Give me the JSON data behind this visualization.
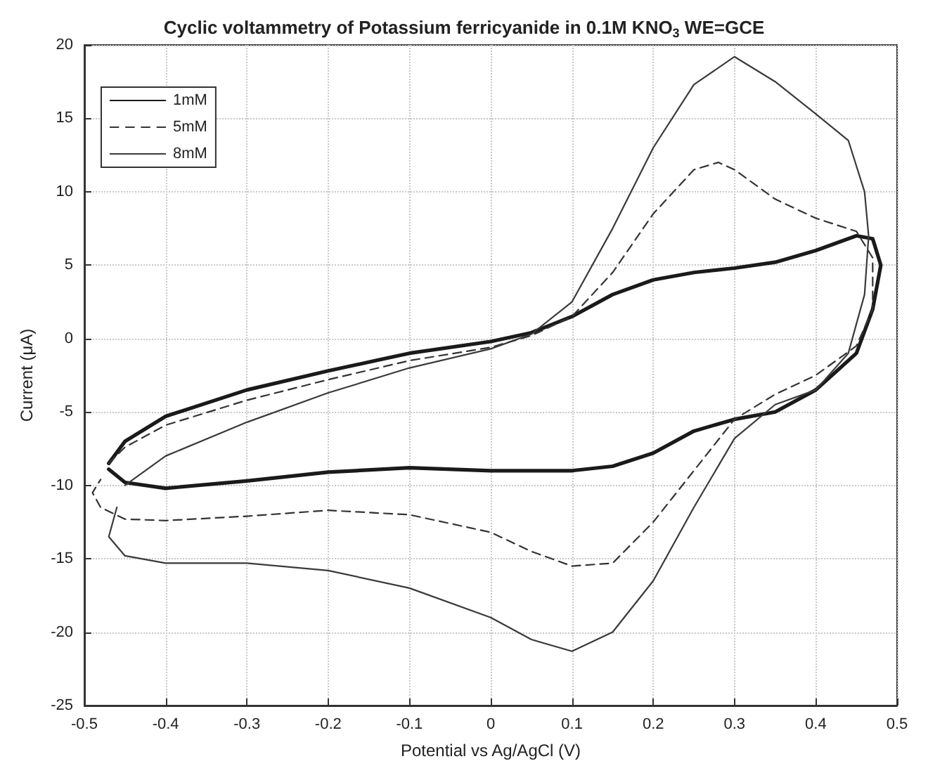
{
  "chart_data": {
    "type": "line",
    "title": "Cyclic voltammetry of Potassium ferricyanide in 0.1M KNO$_{3}$ WE=GCE",
    "xlabel": "Potential vs Ag/AgCl (V)",
    "ylabel": "Current (μA)",
    "xlim": [
      -0.5,
      0.5
    ],
    "xticks": [
      -0.5,
      -0.4,
      -0.3,
      -0.2,
      -0.1,
      0,
      0.1,
      0.2,
      0.3,
      0.4,
      0.5
    ],
    "ylim": [
      -25,
      20
    ],
    "yticks": [
      -25,
      -20,
      -15,
      -10,
      -5,
      0,
      5,
      10,
      15,
      20
    ],
    "grid": true,
    "legend": "top left",
    "marker": "none",
    "series": [
      {
        "name": "1mM",
        "color": "#1a1a1a",
        "line_style": "solid",
        "x": [
          -0.47,
          -0.45,
          -0.4,
          -0.3,
          -0.2,
          -0.1,
          0,
          0.05,
          0.1,
          0.15,
          0.2,
          0.25,
          0.3,
          0.35,
          0.4,
          0.45,
          0.47,
          0.48,
          0.47,
          0.45,
          0.4,
          0.35,
          0.3,
          0.25,
          0.2,
          0.15,
          0.1,
          0,
          -0.1,
          -0.2,
          -0.3,
          -0.4,
          -0.45,
          -0.47
        ],
        "values": [
          -8.5,
          -7,
          -5.3,
          -3.5,
          -2.2,
          -1,
          -0.2,
          0.4,
          1.5,
          3,
          4,
          4.5,
          4.8,
          5.2,
          6,
          7,
          6.8,
          5,
          2,
          -1,
          -3.5,
          -5,
          -5.5,
          -6.3,
          -7.8,
          -8.7,
          -9,
          -9,
          -8.8,
          -9.1,
          -9.7,
          -10.2,
          -9.8,
          -8.9
        ]
      },
      {
        "name": "5mM",
        "color": "#333333",
        "line_style": "dashed",
        "x": [
          -0.47,
          -0.45,
          -0.4,
          -0.3,
          -0.2,
          -0.1,
          0,
          0.05,
          0.1,
          0.15,
          0.2,
          0.25,
          0.28,
          0.3,
          0.35,
          0.4,
          0.45,
          0.47,
          0.47,
          0.45,
          0.4,
          0.35,
          0.3,
          0.25,
          0.2,
          0.15,
          0.1,
          0.05,
          0,
          -0.1,
          -0.2,
          -0.3,
          -0.4,
          -0.45,
          -0.48,
          -0.49,
          -0.48
        ],
        "values": [
          -8.5,
          -7.4,
          -5.9,
          -4.2,
          -2.8,
          -1.5,
          -0.6,
          0.2,
          1.5,
          4.5,
          8.5,
          11.5,
          12,
          11.5,
          9.5,
          8.2,
          7.3,
          5.5,
          2,
          -0.5,
          -2.5,
          -3.8,
          -5.5,
          -9,
          -12.5,
          -15.3,
          -15.5,
          -14.5,
          -13.2,
          -12,
          -11.7,
          -12.1,
          -12.4,
          -12.3,
          -11.5,
          -10.5,
          -9.6
        ]
      },
      {
        "name": "8mM",
        "color": "#3a3a3a",
        "line_style": "solid",
        "x": [
          -0.45,
          -0.4,
          -0.3,
          -0.2,
          -0.1,
          0,
          0.05,
          0.1,
          0.15,
          0.2,
          0.25,
          0.3,
          0.35,
          0.4,
          0.44,
          0.46,
          0.465,
          0.46,
          0.44,
          0.4,
          0.35,
          0.3,
          0.25,
          0.2,
          0.15,
          0.1,
          0.05,
          0,
          -0.1,
          -0.2,
          -0.3,
          -0.4,
          -0.45,
          -0.47,
          -0.46
        ],
        "values": [
          -10,
          -8,
          -5.7,
          -3.7,
          -2,
          -0.7,
          0.3,
          2.5,
          7.5,
          13,
          17.3,
          19.2,
          17.5,
          15.3,
          13.5,
          10,
          7,
          3,
          -1,
          -3.5,
          -4.5,
          -6.8,
          -11.5,
          -16.5,
          -20,
          -21.3,
          -20.5,
          -19,
          -17,
          -15.8,
          -15.3,
          -15.3,
          -14.8,
          -13.5,
          -11.5
        ]
      }
    ]
  }
}
